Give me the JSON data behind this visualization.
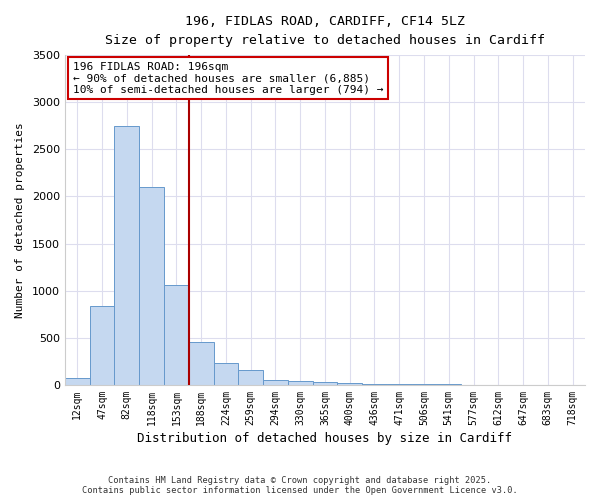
{
  "title_line1": "196, FIDLAS ROAD, CARDIFF, CF14 5LZ",
  "title_line2": "Size of property relative to detached houses in Cardiff",
  "xlabel": "Distribution of detached houses by size in Cardiff",
  "ylabel": "Number of detached properties",
  "categories": [
    "12sqm",
    "47sqm",
    "82sqm",
    "118sqm",
    "153sqm",
    "188sqm",
    "224sqm",
    "259sqm",
    "294sqm",
    "330sqm",
    "365sqm",
    "400sqm",
    "436sqm",
    "471sqm",
    "506sqm",
    "541sqm",
    "577sqm",
    "612sqm",
    "647sqm",
    "683sqm",
    "718sqm"
  ],
  "values": [
    75,
    840,
    2750,
    2100,
    1060,
    460,
    230,
    160,
    55,
    40,
    30,
    20,
    15,
    10,
    5,
    5,
    3,
    2,
    2,
    1,
    1
  ],
  "bar_color": "#c5d8f0",
  "bar_edge_color": "#6699cc",
  "vline_x": 4.5,
  "vline_color": "#aa0000",
  "annotation_text": "196 FIDLAS ROAD: 196sqm\n← 90% of detached houses are smaller (6,885)\n10% of semi-detached houses are larger (794) →",
  "annotation_box_color": "#ffffff",
  "annotation_box_edge": "#cc0000",
  "ylim": [
    0,
    3500
  ],
  "yticks": [
    0,
    500,
    1000,
    1500,
    2000,
    2500,
    3000,
    3500
  ],
  "footer_line1": "Contains HM Land Registry data © Crown copyright and database right 2025.",
  "footer_line2": "Contains public sector information licensed under the Open Government Licence v3.0.",
  "bg_color": "#ffffff",
  "plot_bg_color": "#ffffff"
}
